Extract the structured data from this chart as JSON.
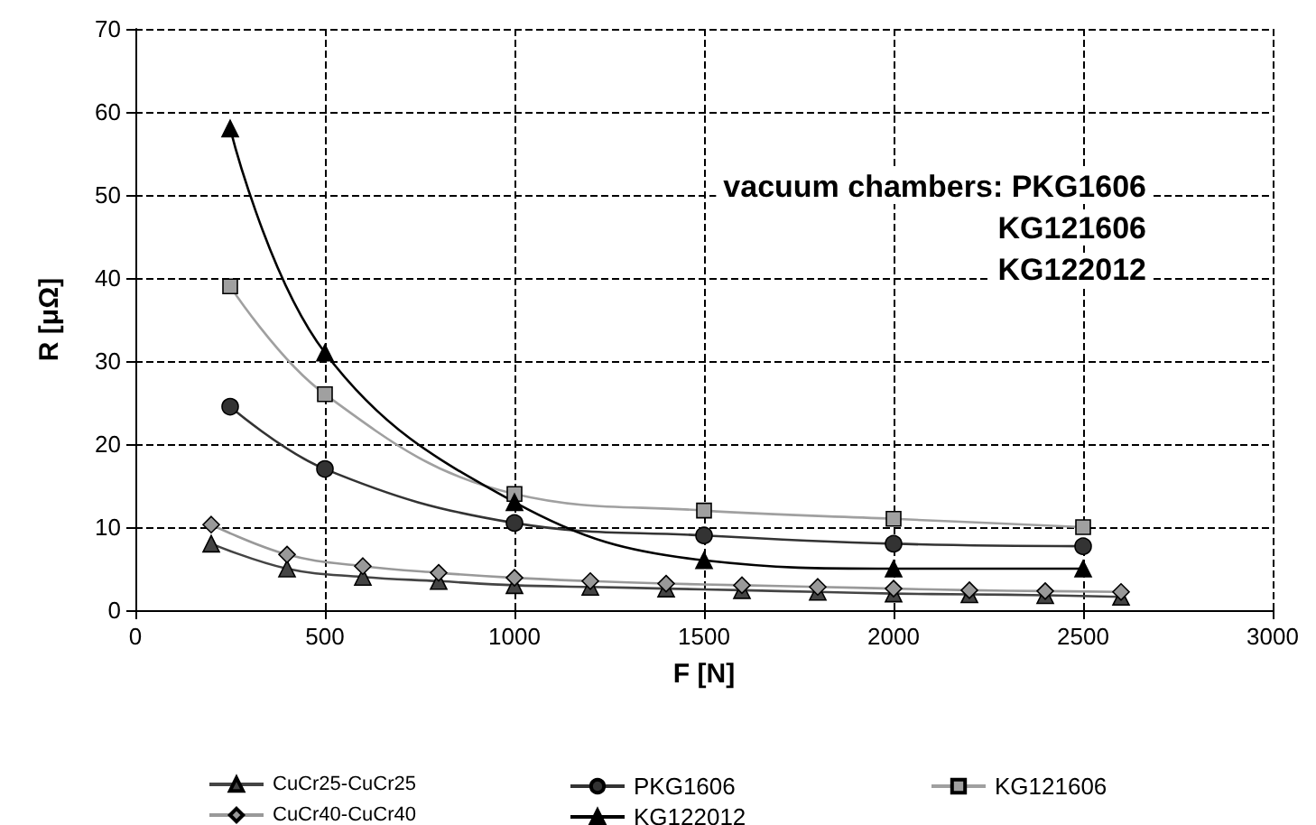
{
  "chart_data": {
    "type": "line",
    "xlabel": "F [N]",
    "ylabel": "R [μΩ]",
    "xlim": [
      0,
      3000
    ],
    "xticks": [
      0,
      500,
      1000,
      1500,
      2000,
      2500,
      3000
    ],
    "ylim": [
      0,
      70
    ],
    "yticks": [
      0,
      10,
      20,
      30,
      40,
      50,
      60,
      70
    ],
    "grid": true,
    "legend": "bottom",
    "line_style": "solid",
    "annotations": [
      "vacuum chambers: PKG1606",
      "KG121606",
      "KG122012"
    ],
    "series": [
      {
        "name": "CuCr25-CuCr25",
        "color": "#444444",
        "marker": "triangle",
        "x": [
          200,
          400,
          600,
          800,
          1000,
          1200,
          1400,
          1600,
          1800,
          2000,
          2200,
          2400,
          2600
        ],
        "values": [
          8,
          5,
          4,
          3.5,
          3,
          2.8,
          2.6,
          2.4,
          2.2,
          2,
          1.9,
          1.8,
          1.6
        ]
      },
      {
        "name": "PKG1606",
        "color": "#333333",
        "marker": "circle",
        "x": [
          250,
          500,
          1000,
          1500,
          2000,
          2500
        ],
        "values": [
          24.5,
          17,
          10.5,
          9,
          8,
          7.7
        ]
      },
      {
        "name": "KG121606",
        "color": "#a0a0a0",
        "marker": "square",
        "x": [
          250,
          500,
          1000,
          1500,
          2000,
          2500
        ],
        "values": [
          39,
          26,
          14,
          12,
          11,
          10
        ]
      },
      {
        "name": "CuCr40-CuCr40",
        "color": "#999999",
        "marker": "diamond",
        "x": [
          200,
          400,
          600,
          800,
          1000,
          1200,
          1400,
          1600,
          1800,
          2000,
          2200,
          2400,
          2600
        ],
        "values": [
          10.3,
          6.7,
          5.3,
          4.5,
          3.9,
          3.5,
          3.2,
          3,
          2.8,
          2.6,
          2.4,
          2.3,
          2.2
        ]
      },
      {
        "name": "KG122012",
        "color": "#000000",
        "marker": "triangle",
        "x": [
          250,
          500,
          1000,
          1500,
          2000,
          2500
        ],
        "values": [
          58,
          31,
          13,
          6,
          5,
          5
        ]
      }
    ]
  }
}
